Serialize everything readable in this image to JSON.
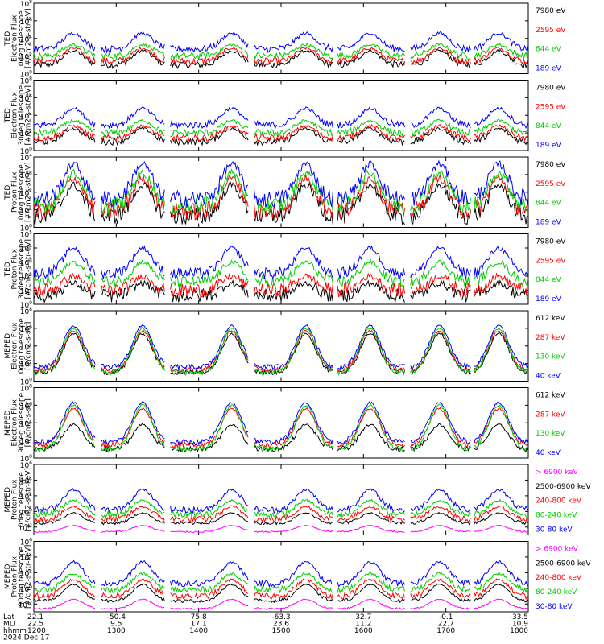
{
  "chart_data": {
    "type": "line",
    "x_ticks": [
      "1200",
      "1300",
      "1400",
      "1500",
      "1600",
      "1700",
      "1800"
    ],
    "footer": {
      "rows": [
        {
          "label": "Lat",
          "values": [
            "22.1",
            "-50.4",
            "75.8",
            "-63.3",
            "32.7",
            "-0.1",
            "-33.5"
          ]
        },
        {
          "label": "MLT",
          "values": [
            "22.5",
            "9.5",
            "17.1",
            "23.6",
            "11.2",
            "22.7",
            "10.9"
          ]
        },
        {
          "label": "hhmm",
          "values": [
            "1200",
            "1300",
            "1400",
            "1500",
            "1600",
            "1700",
            "1800"
          ]
        }
      ],
      "date": "2024 Dec 17"
    },
    "panels": [
      {
        "ylabel": [
          "TED",
          "Electron Flux",
          "0deg telescope",
          "[#/cm2-s-str-eV]"
        ],
        "yticks": [
          "10^8",
          "10^6",
          "10^4",
          "10^2",
          "10^0"
        ],
        "log_min": 0,
        "log_max": 8,
        "series": [
          {
            "name": "7980 eV",
            "color": "#000000",
            "base": 1.0,
            "peak": 2.6,
            "noise": 0.4
          },
          {
            "name": "2595 eV",
            "color": "#ff0000",
            "base": 1.4,
            "peak": 2.9,
            "noise": 0.4
          },
          {
            "name": "844 eV",
            "color": "#00cc00",
            "base": 2.0,
            "peak": 3.3,
            "noise": 0.4
          },
          {
            "name": "189 eV",
            "color": "#0000ff",
            "base": 2.8,
            "peak": 4.6,
            "noise": 0.4
          }
        ]
      },
      {
        "ylabel": [
          "TED",
          "Electron Flux",
          "30deg telescope",
          "[#/cm2-s-str-eV]"
        ],
        "yticks": [
          "10^8",
          "10^6",
          "10^4",
          "10^2",
          "10^0"
        ],
        "log_min": 0,
        "log_max": 8,
        "series": [
          {
            "name": "7980 eV",
            "color": "#000000",
            "base": 1.0,
            "peak": 2.5,
            "noise": 0.4
          },
          {
            "name": "2595 eV",
            "color": "#ff0000",
            "base": 1.4,
            "peak": 2.8,
            "noise": 0.4
          },
          {
            "name": "844 eV",
            "color": "#00cc00",
            "base": 2.0,
            "peak": 3.4,
            "noise": 0.4
          },
          {
            "name": "189 eV",
            "color": "#0000ff",
            "base": 2.9,
            "peak": 4.8,
            "noise": 0.4
          }
        ]
      },
      {
        "ylabel": [
          "TED",
          "Proton Flux",
          "0deg telescope",
          "[#/cm2-s-str-eV]"
        ],
        "yticks": [
          "10^4",
          "10^3",
          "10^2",
          "10^1",
          "10^0"
        ],
        "log_min": 0,
        "log_max": 4,
        "series": [
          {
            "name": "7980 eV",
            "color": "#000000",
            "base": 0.6,
            "peak": 2.4,
            "noise": 0.5
          },
          {
            "name": "2595 eV",
            "color": "#ff0000",
            "base": 0.9,
            "peak": 2.8,
            "noise": 0.5
          },
          {
            "name": "844 eV",
            "color": "#00cc00",
            "base": 1.2,
            "peak": 3.1,
            "noise": 0.5
          },
          {
            "name": "189 eV",
            "color": "#0000ff",
            "base": 1.6,
            "peak": 3.6,
            "noise": 0.5
          }
        ]
      },
      {
        "ylabel": [
          "TED",
          "Proton Flux",
          "30deg telescope",
          "[#/cm2-s-str-eV]"
        ],
        "yticks": [
          "10^5",
          "10^4",
          "10^3",
          "10^2",
          "10^1",
          "10^0"
        ],
        "log_min": 0,
        "log_max": 5,
        "series": [
          {
            "name": "7980 eV",
            "color": "#000000",
            "base": 0.6,
            "peak": 1.5,
            "noise": 0.5
          },
          {
            "name": "2595 eV",
            "color": "#ff0000",
            "base": 1.0,
            "peak": 2.0,
            "noise": 0.5
          },
          {
            "name": "844 eV",
            "color": "#00cc00",
            "base": 1.6,
            "peak": 3.0,
            "noise": 0.4
          },
          {
            "name": "189 eV",
            "color": "#0000ff",
            "base": 2.2,
            "peak": 4.0,
            "noise": 0.4
          }
        ]
      },
      {
        "ylabel": [
          "MEPED",
          "Electron Flux",
          "0deg telescope",
          "[#/cm2-s-str]"
        ],
        "yticks": [
          "10^8",
          "10^6",
          "10^4",
          "10^2",
          "10^0"
        ],
        "log_min": 0,
        "log_max": 8,
        "series": [
          {
            "name": "612 keV",
            "color": "#000000",
            "base": 1.0,
            "peak": 5.4,
            "noise": 0.3
          },
          {
            "name": "287 keV",
            "color": "#ff0000",
            "base": 1.3,
            "peak": 5.7,
            "noise": 0.3
          },
          {
            "name": "130 keV",
            "color": "#00cc00",
            "base": 1.0,
            "peak": 6.0,
            "noise": 0.3
          },
          {
            "name": "40 keV",
            "color": "#0000ff",
            "base": 1.6,
            "peak": 6.3,
            "noise": 0.3
          }
        ]
      },
      {
        "ylabel": [
          "MEPED",
          "Electron Flux",
          "90deg telescope",
          "[#/cm2-s-str]"
        ],
        "yticks": [
          "10^8",
          "10^6",
          "10^4",
          "10^2",
          "10^0"
        ],
        "log_min": 0,
        "log_max": 8,
        "series": [
          {
            "name": "612 keV",
            "color": "#000000",
            "base": 1.0,
            "peak": 3.8,
            "noise": 0.3
          },
          {
            "name": "287 keV",
            "color": "#ff0000",
            "base": 1.5,
            "peak": 5.6,
            "noise": 0.3
          },
          {
            "name": "130 keV",
            "color": "#00cc00",
            "base": 1.0,
            "peak": 6.0,
            "noise": 0.3
          },
          {
            "name": "40 keV",
            "color": "#0000ff",
            "base": 1.8,
            "peak": 6.3,
            "noise": 0.3
          }
        ]
      },
      {
        "ylabel": [
          "MEPED",
          "Proton Flux",
          "0deg telescope",
          "[#/cm2-s-str-keV]"
        ],
        "yticks": [
          "10^6",
          "10^4",
          "10^2",
          "10^0",
          "10^-2"
        ],
        "log_min": -3,
        "log_max": 6,
        "series": [
          {
            "name": "> 6900 keV",
            "color": "#ff00ff",
            "base": -2.6,
            "peak": -1.8,
            "noise": 0.1
          },
          {
            "name": "2500-6900 keV",
            "color": "#000000",
            "base": -1.5,
            "peak": -0.2,
            "noise": 0.2
          },
          {
            "name": "240-800 keV",
            "color": "#ff0000",
            "base": -1.0,
            "peak": 0.6,
            "noise": 0.4
          },
          {
            "name": "80-240 keV",
            "color": "#00cc00",
            "base": -0.4,
            "peak": 1.4,
            "noise": 0.4
          },
          {
            "name": "30-80 keV",
            "color": "#0000ff",
            "base": 0.2,
            "peak": 2.8,
            "noise": 0.4
          }
        ]
      },
      {
        "ylabel": [
          "MEPED",
          "Proton Flux",
          "90deg telescope",
          "[#/cm2-s-str-keV]"
        ],
        "yticks": [
          "10^6",
          "10^4",
          "10^2",
          "10^0",
          "10^-2"
        ],
        "log_min": -3,
        "log_max": 6,
        "series": [
          {
            "name": "> 6900 keV",
            "color": "#ff00ff",
            "base": -2.6,
            "peak": -1.4,
            "noise": 0.1
          },
          {
            "name": "2500-6900 keV",
            "color": "#000000",
            "base": -1.6,
            "peak": 0.5,
            "noise": 0.2
          },
          {
            "name": "240-800 keV",
            "color": "#ff0000",
            "base": -1.0,
            "peak": 1.1,
            "noise": 0.4
          },
          {
            "name": "80-240 keV",
            "color": "#00cc00",
            "base": -0.2,
            "peak": 1.9,
            "noise": 0.4
          },
          {
            "name": "30-80 keV",
            "color": "#0000ff",
            "base": 0.6,
            "peak": 3.4,
            "noise": 0.4
          }
        ]
      }
    ]
  }
}
